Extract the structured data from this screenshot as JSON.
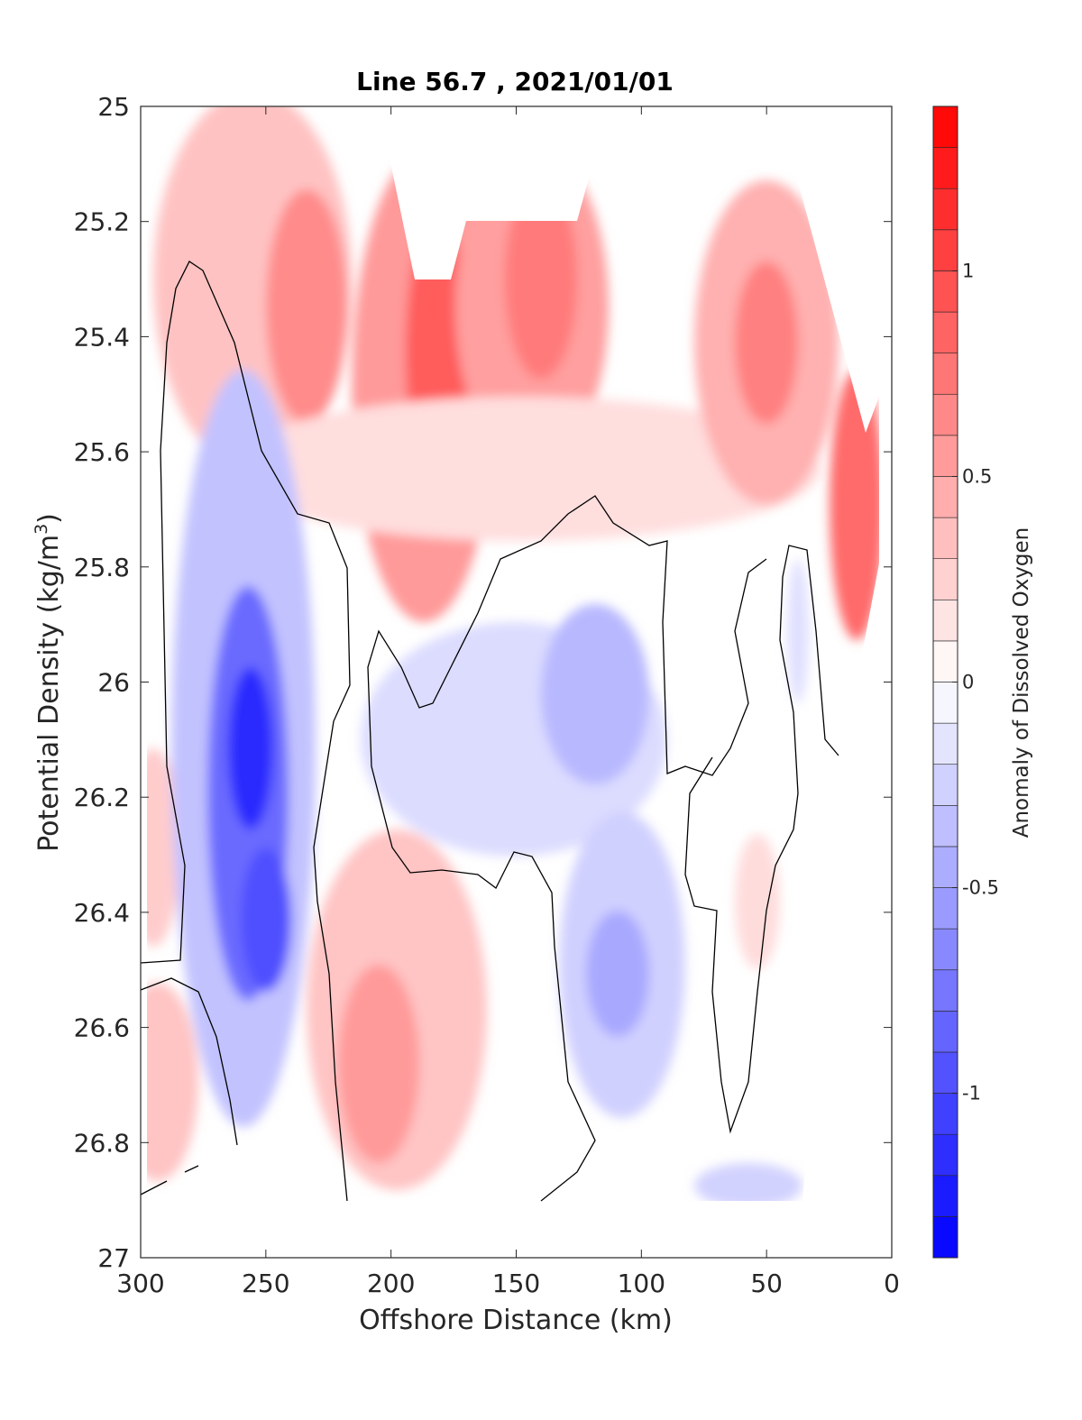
{
  "chart_data": {
    "type": "heatmap",
    "subtype": "filled-contour",
    "title": "Line 56.7 , 2021/01/01",
    "xlabel": "Offshore Distance (km)",
    "ylabel_prefix": "Potential Density (kg/m",
    "ylabel_sup": "3",
    "ylabel_suffix": ")",
    "xlim": [
      300,
      0
    ],
    "ylim": [
      25,
      27
    ],
    "x_reversed": true,
    "y_reversed": true,
    "xticks": [
      300,
      250,
      200,
      150,
      100,
      50,
      0
    ],
    "yticks": [
      25,
      25.2,
      25.4,
      25.6,
      25.8,
      26,
      26.2,
      26.4,
      26.6,
      26.8,
      27
    ],
    "xtick_labels": [
      "300",
      "250",
      "200",
      "150",
      "100",
      "50",
      "0"
    ],
    "ytick_labels": [
      "25",
      "25.2",
      "25.4",
      "25.6",
      "25.8",
      "26",
      "26.2",
      "26.4",
      "26.6",
      "26.8",
      "27"
    ],
    "colorbar": {
      "label": "Anomaly of Dissolved Oxygen",
      "range": [
        -1.4,
        1.4
      ],
      "levels": 28,
      "ticks": [
        -1,
        -0.5,
        0,
        0.5,
        1
      ],
      "tick_labels": [
        "-1",
        "-0.5",
        "0",
        "0.5",
        "1"
      ],
      "colormap": [
        "#0000ff",
        "#ffffff",
        "#ff0000"
      ]
    },
    "zero_contour_color": "#000000",
    "grid": false
  }
}
